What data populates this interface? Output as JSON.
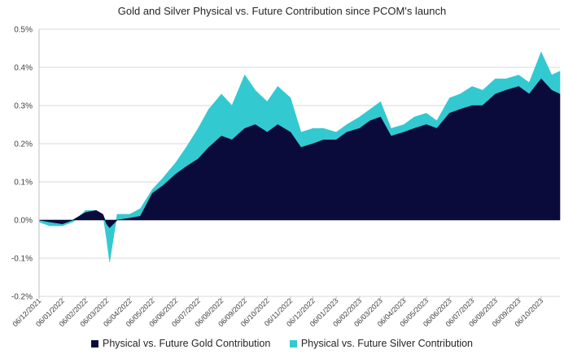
{
  "chart_data": {
    "type": "area",
    "stacked": true,
    "title": "Gold and Silver Physical vs. Future Contribution since PCOM's launch",
    "xlabel": "",
    "ylabel": "",
    "ylim": [
      -0.2,
      0.5
    ],
    "y_tick_labels": [
      "0.5%",
      "0.4%",
      "0.3%",
      "0.2%",
      "0.1%",
      "0.0%",
      "-0.1%",
      "-0.2%"
    ],
    "y_ticks": [
      0.5,
      0.4,
      0.3,
      0.2,
      0.1,
      0.0,
      -0.1,
      -0.2
    ],
    "grid": "horizontal",
    "legend_position": "bottom",
    "x_tick_labels": [
      "06/12/2021",
      "06/01/2022",
      "06/02/2022",
      "06/03/2022",
      "06/04/2022",
      "06/05/2022",
      "06/06/2022",
      "06/07/2022",
      "06/08/2022",
      "06/09/2022",
      "06/10/2022",
      "06/11/2022",
      "06/12/2022",
      "06/01/2023",
      "06/02/2023",
      "06/03/2023",
      "06/04/2023",
      "06/05/2023",
      "06/06/2023",
      "06/07/2023",
      "06/08/2023",
      "06/09/2023",
      "06/10/2023"
    ],
    "x": [
      "2021-12-06",
      "2021-12-20",
      "2022-01-06",
      "2022-01-20",
      "2022-02-06",
      "2022-02-20",
      "2022-03-01",
      "2022-03-06",
      "2022-03-10",
      "2022-03-20",
      "2022-04-06",
      "2022-04-20",
      "2022-05-06",
      "2022-05-20",
      "2022-06-06",
      "2022-06-20",
      "2022-07-06",
      "2022-07-20",
      "2022-08-06",
      "2022-08-20",
      "2022-09-06",
      "2022-09-20",
      "2022-10-06",
      "2022-10-20",
      "2022-11-06",
      "2022-11-20",
      "2022-12-06",
      "2022-12-20",
      "2023-01-06",
      "2023-01-20",
      "2023-02-06",
      "2023-02-20",
      "2023-03-06",
      "2023-03-20",
      "2023-04-06",
      "2023-04-20",
      "2023-05-06",
      "2023-05-20",
      "2023-06-06",
      "2023-06-20",
      "2023-07-06",
      "2023-07-20",
      "2023-08-06",
      "2023-08-20",
      "2023-09-06",
      "2023-09-20",
      "2023-10-06",
      "2023-10-20",
      "2023-10-31"
    ],
    "series": [
      {
        "name": "Physical vs. Future Gold Contribution",
        "color": "#0b0b3b",
        "values": [
          0.0,
          -0.005,
          -0.01,
          0.0,
          0.02,
          0.025,
          0.015,
          -0.01,
          -0.02,
          0.0,
          0.005,
          0.01,
          0.07,
          0.09,
          0.12,
          0.14,
          0.16,
          0.19,
          0.22,
          0.21,
          0.24,
          0.25,
          0.23,
          0.25,
          0.23,
          0.19,
          0.2,
          0.21,
          0.21,
          0.23,
          0.24,
          0.26,
          0.27,
          0.22,
          0.23,
          0.24,
          0.25,
          0.24,
          0.28,
          0.29,
          0.3,
          0.3,
          0.33,
          0.34,
          0.35,
          0.33,
          0.37,
          0.34,
          0.33
        ]
      },
      {
        "name": "Physical vs. Future Silver Contribution",
        "color": "#33c9d1",
        "values": [
          -0.005,
          -0.01,
          -0.005,
          -0.005,
          0.005,
          0.0,
          0.0,
          -0.04,
          -0.09,
          0.015,
          0.01,
          0.02,
          0.01,
          0.02,
          0.03,
          0.05,
          0.08,
          0.1,
          0.11,
          0.09,
          0.14,
          0.09,
          0.08,
          0.1,
          0.09,
          0.04,
          0.04,
          0.03,
          0.02,
          0.02,
          0.03,
          0.03,
          0.04,
          0.02,
          0.02,
          0.03,
          0.03,
          0.02,
          0.04,
          0.04,
          0.05,
          0.04,
          0.04,
          0.03,
          0.03,
          0.03,
          0.07,
          0.04,
          0.06
        ]
      }
    ]
  }
}
